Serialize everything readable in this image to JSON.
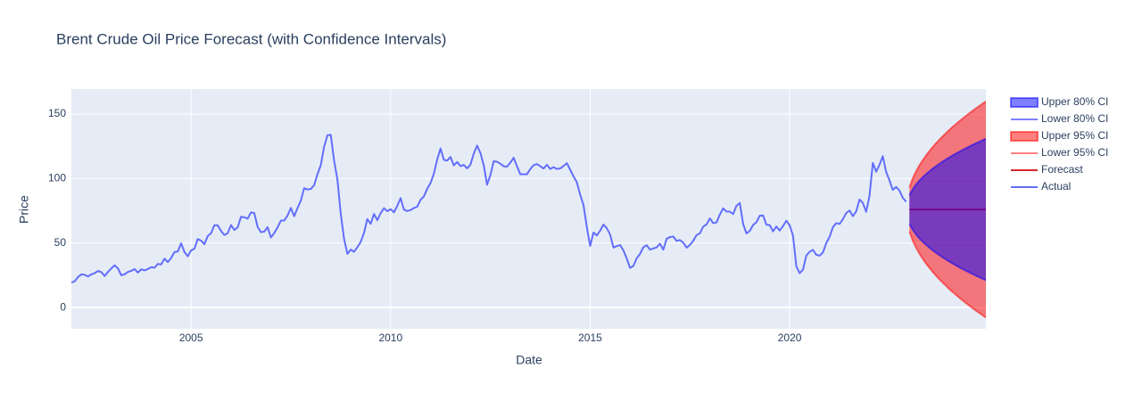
{
  "chart_data": {
    "type": "line",
    "title": "Brent Crude Oil Price Forecast (with Confidence Intervals)",
    "xlabel": "Date",
    "ylabel": "Price",
    "xlim": [
      "2002-01",
      "2024-12"
    ],
    "ylim": [
      -16.5,
      169.3
    ],
    "xticks": [
      {
        "value": "2005-01",
        "label": "2005"
      },
      {
        "value": "2010-01",
        "label": "2010"
      },
      {
        "value": "2015-01",
        "label": "2015"
      },
      {
        "value": "2020-01",
        "label": "2020"
      }
    ],
    "yticks": [
      0,
      50,
      100,
      150
    ],
    "grid": true,
    "legend": "outside-right",
    "series": [
      {
        "name": "Upper 80% CI",
        "color": "rgba(0,0,255,0.5)",
        "fill": "rgba(0,0,255,0.5)",
        "x": [
          "2023-01",
          "2023-02",
          "2023-03",
          "2023-04",
          "2023-05",
          "2023-06",
          "2023-07",
          "2023-08",
          "2023-09",
          "2023-10",
          "2023-11",
          "2023-12",
          "2024-01",
          "2024-02",
          "2024-03",
          "2024-04",
          "2024-05",
          "2024-06",
          "2024-07",
          "2024-08",
          "2024-09",
          "2024-10",
          "2024-11",
          "2024-12"
        ],
        "values": [
          87.2,
          91.8,
          95.4,
          98.4,
          101.0,
          103.4,
          105.6,
          107.7,
          109.6,
          111.4,
          113.2,
          114.8,
          116.4,
          117.9,
          119.4,
          120.8,
          122.2,
          123.5,
          124.8,
          126.1,
          127.3,
          128.5,
          129.7,
          130.9
        ]
      },
      {
        "name": "Lower 80% CI",
        "color": "rgba(0,0,255,0.5)",
        "x": [
          "2023-01",
          "2023-02",
          "2023-03",
          "2023-04",
          "2023-05",
          "2023-06",
          "2023-07",
          "2023-08",
          "2023-09",
          "2023-10",
          "2023-11",
          "2023-12",
          "2024-01",
          "2024-02",
          "2024-03",
          "2024-04",
          "2024-05",
          "2024-06",
          "2024-07",
          "2024-08",
          "2024-09",
          "2024-10",
          "2024-11",
          "2024-12"
        ],
        "values": [
          64.8,
          60.2,
          56.6,
          53.6,
          51.0,
          48.6,
          46.4,
          44.3,
          42.4,
          40.6,
          38.8,
          37.2,
          35.6,
          34.1,
          32.6,
          31.2,
          29.8,
          28.5,
          27.2,
          25.9,
          24.7,
          23.5,
          22.3,
          21.1
        ]
      },
      {
        "name": "Upper 95% CI",
        "color": "rgba(255,0,0,0.5)",
        "fill": "rgba(255,0,0,0.5)",
        "x": [
          "2023-01",
          "2023-02",
          "2023-03",
          "2023-04",
          "2023-05",
          "2023-06",
          "2023-07",
          "2023-08",
          "2023-09",
          "2023-10",
          "2023-11",
          "2023-12",
          "2024-01",
          "2024-02",
          "2024-03",
          "2024-04",
          "2024-05",
          "2024-06",
          "2024-07",
          "2024-08",
          "2024-09",
          "2024-10",
          "2024-11",
          "2024-12"
        ],
        "values": [
          93.1,
          100.2,
          105.6,
          110.2,
          114.2,
          117.9,
          121.2,
          124.4,
          127.3,
          130.1,
          132.7,
          135.2,
          137.7,
          140.0,
          142.2,
          144.4,
          146.5,
          148.6,
          150.5,
          152.5,
          154.4,
          156.2,
          158.0,
          159.8
        ]
      },
      {
        "name": "Lower 95% CI",
        "color": "rgba(255,0,0,0.5)",
        "x": [
          "2023-01",
          "2023-02",
          "2023-03",
          "2023-04",
          "2023-05",
          "2023-06",
          "2023-07",
          "2023-08",
          "2023-09",
          "2023-10",
          "2023-11",
          "2023-12",
          "2024-01",
          "2024-02",
          "2024-03",
          "2024-04",
          "2024-05",
          "2024-06",
          "2024-07",
          "2024-08",
          "2024-09",
          "2024-10",
          "2024-11",
          "2024-12"
        ],
        "values": [
          58.9,
          51.8,
          46.4,
          41.8,
          37.8,
          34.1,
          30.8,
          27.6,
          24.7,
          21.9,
          19.3,
          16.8,
          14.3,
          12.0,
          9.8,
          7.6,
          5.5,
          3.4,
          1.5,
          -0.5,
          -2.4,
          -4.2,
          -6.0,
          -7.8
        ]
      },
      {
        "name": "Forecast",
        "color": "#d62728",
        "x": [
          "2023-01",
          "2023-02",
          "2023-03",
          "2023-04",
          "2023-05",
          "2023-06",
          "2023-07",
          "2023-08",
          "2023-09",
          "2023-10",
          "2023-11",
          "2023-12",
          "2024-01",
          "2024-02",
          "2024-03",
          "2024-04",
          "2024-05",
          "2024-06",
          "2024-07",
          "2024-08",
          "2024-09",
          "2024-10",
          "2024-11",
          "2024-12"
        ],
        "values": [
          76,
          76,
          76,
          76,
          76,
          76,
          76,
          76,
          76,
          76,
          76,
          76,
          76,
          76,
          76,
          76,
          76,
          76,
          76,
          76,
          76,
          76,
          76,
          76
        ]
      },
      {
        "name": "Actual",
        "color": "#636efa",
        "x": [
          "2002-01",
          "2002-02",
          "2002-03",
          "2002-04",
          "2002-05",
          "2002-06",
          "2002-07",
          "2002-08",
          "2002-09",
          "2002-10",
          "2002-11",
          "2002-12",
          "2003-01",
          "2003-02",
          "2003-03",
          "2003-04",
          "2003-05",
          "2003-06",
          "2003-07",
          "2003-08",
          "2003-09",
          "2003-10",
          "2003-11",
          "2003-12",
          "2004-01",
          "2004-02",
          "2004-03",
          "2004-04",
          "2004-05",
          "2004-06",
          "2004-07",
          "2004-08",
          "2004-09",
          "2004-10",
          "2004-11",
          "2004-12",
          "2005-01",
          "2005-02",
          "2005-03",
          "2005-04",
          "2005-05",
          "2005-06",
          "2005-07",
          "2005-08",
          "2005-09",
          "2005-10",
          "2005-11",
          "2005-12",
          "2006-01",
          "2006-02",
          "2006-03",
          "2006-04",
          "2006-05",
          "2006-06",
          "2006-07",
          "2006-08",
          "2006-09",
          "2006-10",
          "2006-11",
          "2006-12",
          "2007-01",
          "2007-02",
          "2007-03",
          "2007-04",
          "2007-05",
          "2007-06",
          "2007-07",
          "2007-08",
          "2007-09",
          "2007-10",
          "2007-11",
          "2007-12",
          "2008-01",
          "2008-02",
          "2008-03",
          "2008-04",
          "2008-05",
          "2008-06",
          "2008-07",
          "2008-08",
          "2008-09",
          "2008-10",
          "2008-11",
          "2008-12",
          "2009-01",
          "2009-02",
          "2009-03",
          "2009-04",
          "2009-05",
          "2009-06",
          "2009-07",
          "2009-08",
          "2009-09",
          "2009-10",
          "2009-11",
          "2009-12",
          "2010-01",
          "2010-02",
          "2010-03",
          "2010-04",
          "2010-05",
          "2010-06",
          "2010-07",
          "2010-08",
          "2010-09",
          "2010-10",
          "2010-11",
          "2010-12",
          "2011-01",
          "2011-02",
          "2011-03",
          "2011-04",
          "2011-05",
          "2011-06",
          "2011-07",
          "2011-08",
          "2011-09",
          "2011-10",
          "2011-11",
          "2011-12",
          "2012-01",
          "2012-02",
          "2012-03",
          "2012-04",
          "2012-05",
          "2012-06",
          "2012-07",
          "2012-08",
          "2012-09",
          "2012-10",
          "2012-11",
          "2012-12",
          "2013-01",
          "2013-02",
          "2013-03",
          "2013-04",
          "2013-05",
          "2013-06",
          "2013-07",
          "2013-08",
          "2013-09",
          "2013-10",
          "2013-11",
          "2013-12",
          "2014-01",
          "2014-02",
          "2014-03",
          "2014-04",
          "2014-05",
          "2014-06",
          "2014-07",
          "2014-08",
          "2014-09",
          "2014-10",
          "2014-11",
          "2014-12",
          "2015-01",
          "2015-02",
          "2015-03",
          "2015-04",
          "2015-05",
          "2015-06",
          "2015-07",
          "2015-08",
          "2015-09",
          "2015-10",
          "2015-11",
          "2015-12",
          "2016-01",
          "2016-02",
          "2016-03",
          "2016-04",
          "2016-05",
          "2016-06",
          "2016-07",
          "2016-08",
          "2016-09",
          "2016-10",
          "2016-11",
          "2016-12",
          "2017-01",
          "2017-02",
          "2017-03",
          "2017-04",
          "2017-05",
          "2017-06",
          "2017-07",
          "2017-08",
          "2017-09",
          "2017-10",
          "2017-11",
          "2017-12",
          "2018-01",
          "2018-02",
          "2018-03",
          "2018-04",
          "2018-05",
          "2018-06",
          "2018-07",
          "2018-08",
          "2018-09",
          "2018-10",
          "2018-11",
          "2018-12",
          "2019-01",
          "2019-02",
          "2019-03",
          "2019-04",
          "2019-05",
          "2019-06",
          "2019-07",
          "2019-08",
          "2019-09",
          "2019-10",
          "2019-11",
          "2019-12",
          "2020-01",
          "2020-02",
          "2020-03",
          "2020-04",
          "2020-05",
          "2020-06",
          "2020-07",
          "2020-08",
          "2020-09",
          "2020-10",
          "2020-11",
          "2020-12",
          "2021-01",
          "2021-02",
          "2021-03",
          "2021-04",
          "2021-05",
          "2021-06",
          "2021-07",
          "2021-08",
          "2021-09",
          "2021-10",
          "2021-11",
          "2021-12",
          "2022-01",
          "2022-02",
          "2022-03",
          "2022-04",
          "2022-05",
          "2022-06",
          "2022-07",
          "2022-08",
          "2022-09",
          "2022-10",
          "2022-11",
          "2022-12"
        ],
        "values": [
          19.4,
          20.3,
          23.7,
          25.7,
          25.4,
          24.1,
          25.7,
          26.6,
          28.3,
          27.5,
          24.4,
          27.6,
          30.3,
          32.7,
          30.3,
          25.0,
          25.8,
          27.6,
          28.4,
          29.8,
          27.1,
          29.6,
          28.8,
          29.8,
          31.3,
          30.9,
          33.8,
          33.4,
          37.9,
          35.2,
          38.4,
          43.0,
          43.4,
          49.8,
          43.1,
          39.7,
          44.3,
          45.6,
          53.1,
          51.9,
          49.0,
          55.4,
          57.6,
          63.8,
          63.7,
          59.4,
          56.2,
          57.6,
          63.9,
          60.1,
          62.1,
          70.3,
          70.0,
          68.9,
          73.7,
          73.2,
          62.5,
          58.4,
          58.9,
          62.3,
          54.3,
          57.8,
          62.1,
          67.4,
          67.5,
          71.3,
          77.2,
          70.8,
          77.1,
          82.9,
          92.5,
          91.5,
          91.9,
          94.8,
          103.3,
          110.4,
          124.6,
          133.5,
          133.9,
          113.9,
          99.1,
          72.8,
          53.2,
          41.6,
          44.9,
          43.2,
          46.8,
          50.8,
          57.9,
          68.6,
          64.9,
          72.5,
          67.7,
          73.2,
          77.0,
          74.7,
          76.2,
          73.8,
          78.8,
          84.8,
          75.9,
          74.8,
          75.6,
          77.1,
          78.2,
          83.5,
          86.1,
          92.0,
          96.5,
          103.7,
          114.6,
          123.3,
          114.5,
          113.9,
          116.7,
          110.2,
          112.8,
          109.6,
          110.5,
          107.9,
          110.7,
          119.3,
          125.5,
          119.8,
          110.3,
          95.2,
          102.6,
          113.4,
          113.0,
          111.5,
          109.5,
          109.2,
          112.3,
          116.1,
          109.5,
          103.3,
          103.3,
          103.3,
          107.4,
          110.3,
          111.2,
          109.5,
          107.8,
          110.6,
          107.4,
          108.8,
          107.4,
          107.8,
          109.7,
          111.9,
          106.8,
          101.6,
          97.1,
          87.4,
          79.4,
          62.3,
          47.8,
          58.1,
          55.9,
          59.5,
          64.3,
          61.5,
          56.6,
          46.5,
          47.6,
          48.4,
          44.3,
          38.0,
          30.7,
          32.2,
          38.2,
          41.6,
          46.7,
          48.3,
          44.9,
          45.8,
          46.6,
          49.5,
          44.8,
          53.3,
          54.6,
          55.0,
          51.6,
          52.3,
          50.3,
          46.4,
          48.5,
          51.7,
          56.2,
          57.5,
          62.7,
          64.4,
          69.1,
          65.4,
          66.0,
          72.1,
          76.9,
          74.4,
          74.3,
          72.5,
          78.9,
          81.0,
          64.8,
          57.4,
          59.4,
          64.0,
          66.1,
          71.2,
          71.3,
          64.2,
          63.9,
          59.0,
          62.8,
          59.7,
          63.2,
          67.3,
          63.7,
          55.7,
          32.0,
          26.6,
          29.4,
          40.3,
          43.2,
          44.7,
          40.9,
          40.2,
          42.7,
          49.9,
          54.8,
          62.3,
          65.4,
          64.8,
          68.5,
          73.2,
          75.2,
          70.8,
          74.5,
          83.7,
          81.1,
          74.2,
          86.5,
          112.1,
          105.3,
          110.6,
          117.3,
          105.2,
          98.6,
          91.2,
          93.5,
          90.7,
          85.1,
          82.0
        ]
      }
    ]
  }
}
